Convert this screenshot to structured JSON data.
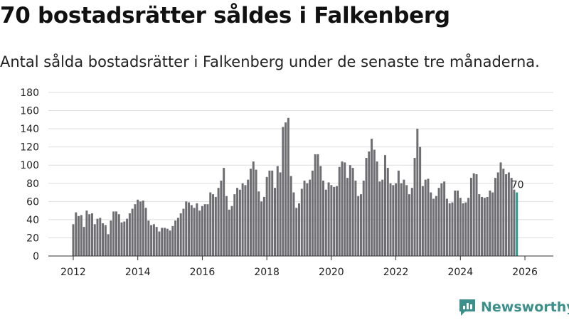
{
  "title": "70 bostadsrätter såldes i Falkenberg",
  "subtitle": "Antal sålda bostadsrätter i Falkenberg under de senaste tre månaderna.",
  "brand": "Newsworthy",
  "colors": {
    "bar": "#6e6d72",
    "highlight": "#2a9d8f",
    "grid": "#dddddd",
    "brand": "#3c8f8a"
  },
  "chart_data": {
    "type": "bar",
    "title": "Antal sålda bostadsrätter i Falkenberg",
    "xlabel": "",
    "ylabel": "",
    "ylim": [
      0,
      180
    ],
    "yticks": [
      0,
      20,
      40,
      60,
      80,
      100,
      120,
      140,
      160,
      180
    ],
    "xticks": [
      "2012",
      "2014",
      "2016",
      "2018",
      "2020",
      "2022",
      "2024",
      "2026"
    ],
    "x_start": "2012-01",
    "interval": "monthly",
    "annotation": {
      "label": "70",
      "target": "last"
    },
    "values": [
      35,
      48,
      44,
      45,
      32,
      50,
      46,
      47,
      35,
      41,
      42,
      36,
      34,
      24,
      39,
      49,
      49,
      46,
      37,
      38,
      41,
      47,
      52,
      57,
      62,
      60,
      61,
      53,
      39,
      34,
      35,
      32,
      27,
      31,
      31,
      30,
      28,
      33,
      39,
      42,
      47,
      52,
      60,
      59,
      56,
      53,
      58,
      50,
      55,
      57,
      57,
      70,
      68,
      65,
      75,
      83,
      97,
      66,
      51,
      55,
      68,
      75,
      73,
      80,
      78,
      84,
      96,
      104,
      95,
      71,
      60,
      65,
      87,
      94,
      94,
      75,
      99,
      92,
      142,
      147,
      152,
      88,
      70,
      53,
      58,
      74,
      83,
      80,
      84,
      94,
      112,
      112,
      99,
      83,
      73,
      81,
      78,
      76,
      77,
      98,
      104,
      103,
      86,
      100,
      97,
      83,
      66,
      68,
      83,
      108,
      115,
      129,
      117,
      104,
      82,
      84,
      111,
      97,
      80,
      78,
      80,
      94,
      80,
      84,
      78,
      68,
      75,
      108,
      140,
      120,
      77,
      84,
      85,
      70,
      63,
      66,
      75,
      80,
      82,
      63,
      58,
      59,
      72,
      72,
      64,
      58,
      59,
      64,
      86,
      91,
      90,
      68,
      65,
      64,
      65,
      72,
      70,
      86,
      92,
      103,
      96,
      90,
      92,
      86,
      73,
      70
    ]
  }
}
